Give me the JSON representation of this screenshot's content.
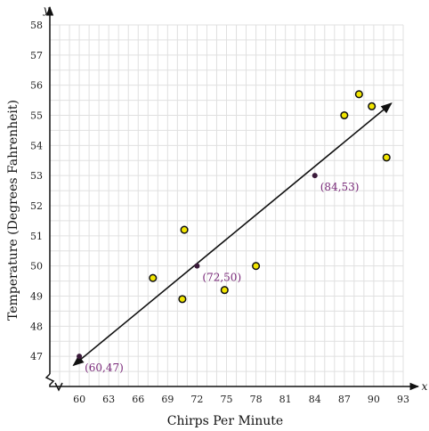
{
  "chart_data": {
    "type": "scatter",
    "title": "",
    "xlabel": "Chirps Per Minute",
    "ylabel": "Temperature (Degrees Fahrenheit)",
    "x_axis_letter": "x",
    "y_axis_letter": "y",
    "xlim": [
      57,
      93
    ],
    "ylim": [
      46,
      58
    ],
    "xticks": [
      60,
      63,
      66,
      69,
      72,
      75,
      78,
      81,
      84,
      87,
      90,
      93
    ],
    "yticks": [
      47,
      48,
      49,
      50,
      51,
      52,
      53,
      54,
      55,
      56,
      57,
      58
    ],
    "grid": true,
    "axis_break": true,
    "series": [
      {
        "x": [
          67.5,
          70.5,
          70.7,
          74.8,
          78.0,
          87.0,
          88.5,
          89.8,
          91.3
        ],
        "y": [
          49.6,
          48.9,
          51.2,
          49.2,
          50.0,
          55.0,
          55.7,
          55.3,
          53.6
        ]
      }
    ],
    "trend_line": {
      "from": [
        59.4,
        46.7
      ],
      "to": [
        91.8,
        55.4
      ]
    },
    "labeled_points": [
      {
        "x": 60,
        "y": 47,
        "label": "(60,47)"
      },
      {
        "x": 72,
        "y": 50,
        "label": "(72,50)"
      },
      {
        "x": 84,
        "y": 53,
        "label": "(84,53)"
      }
    ],
    "colors": {
      "marker_fill": "#f2e600",
      "marker_stroke": "#111111",
      "labeled_point": "#3a1a3a",
      "label_text": "#7a2a7a",
      "grid": "#e0e0e0",
      "axis": "#111111"
    }
  }
}
